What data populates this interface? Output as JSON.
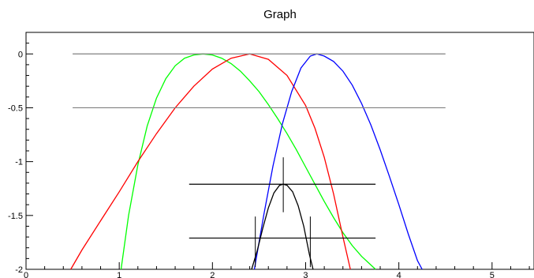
{
  "chart_data": {
    "type": "line",
    "title": "Graph",
    "xlabel": "",
    "ylabel": "",
    "xlim": [
      0,
      5.45
    ],
    "ylim": [
      -2,
      0.2
    ],
    "x_ticks": [
      {
        "value": 0,
        "label": "0"
      },
      {
        "value": 1,
        "label": "1"
      },
      {
        "value": 2,
        "label": "2"
      },
      {
        "value": 3,
        "label": "3"
      },
      {
        "value": 4,
        "label": "4"
      },
      {
        "value": 5,
        "label": "5"
      }
    ],
    "y_ticks": [
      {
        "value": 0,
        "label": "0"
      },
      {
        "value": -0.5,
        "label": "-0.5"
      },
      {
        "value": -1,
        "label": "-1"
      },
      {
        "value": -1.5,
        "label": "-1.5"
      },
      {
        "value": -2,
        "label": "-2"
      }
    ],
    "grid": false,
    "curves": [
      {
        "color": "#00ff00",
        "x": [
          1.02,
          1.1,
          1.2,
          1.3,
          1.4,
          1.5,
          1.6,
          1.7,
          1.8,
          1.9,
          2.0,
          2.1,
          2.2,
          2.3,
          2.4,
          2.5,
          2.6,
          2.7,
          2.8,
          2.9,
          3.0,
          3.1,
          3.2,
          3.3,
          3.4,
          3.5,
          3.6,
          3.7,
          3.75
        ],
        "y": [
          -2.0,
          -1.5,
          -1.03,
          -0.67,
          -0.41,
          -0.23,
          -0.11,
          -0.04,
          -0.01,
          0.0,
          -0.01,
          -0.04,
          -0.09,
          -0.16,
          -0.25,
          -0.35,
          -0.47,
          -0.6,
          -0.74,
          -0.89,
          -1.05,
          -1.21,
          -1.37,
          -1.52,
          -1.66,
          -1.78,
          -1.88,
          -1.96,
          -2.0
        ]
      },
      {
        "color": "#ff0000",
        "x": [
          0.48,
          0.6,
          0.8,
          1.0,
          1.2,
          1.4,
          1.6,
          1.8,
          2.0,
          2.2,
          2.4,
          2.6,
          2.8,
          3.0,
          3.1,
          3.2,
          3.3,
          3.4,
          3.48
        ],
        "y": [
          -2.0,
          -1.82,
          -1.55,
          -1.28,
          -1.0,
          -0.74,
          -0.5,
          -0.3,
          -0.14,
          -0.04,
          0.0,
          -0.05,
          -0.2,
          -0.48,
          -0.69,
          -0.96,
          -1.3,
          -1.7,
          -2.0
        ]
      },
      {
        "color": "#0000ff",
        "x": [
          2.45,
          2.55,
          2.65,
          2.75,
          2.85,
          2.95,
          3.05,
          3.12,
          3.2,
          3.3,
          3.4,
          3.5,
          3.6,
          3.7,
          3.8,
          3.9,
          4.0,
          4.1,
          4.2,
          4.25
        ],
        "y": [
          -2.0,
          -1.5,
          -1.04,
          -0.65,
          -0.35,
          -0.13,
          -0.02,
          0.0,
          -0.02,
          -0.07,
          -0.16,
          -0.29,
          -0.46,
          -0.66,
          -0.89,
          -1.14,
          -1.4,
          -1.67,
          -1.92,
          -2.0
        ]
      },
      {
        "color": "#000000",
        "x": [
          2.42,
          2.48,
          2.54,
          2.6,
          2.66,
          2.72,
          2.76,
          2.8,
          2.86,
          2.92,
          2.98,
          3.04,
          3.08
        ],
        "y": [
          -2.0,
          -1.83,
          -1.62,
          -1.43,
          -1.29,
          -1.22,
          -1.21,
          -1.22,
          -1.28,
          -1.41,
          -1.6,
          -1.86,
          -2.0
        ]
      }
    ],
    "horizontal_lines": [
      {
        "color": "#808080",
        "y": 0,
        "x_start": 0.5,
        "x_end": 4.5
      },
      {
        "color": "#808080",
        "y": -0.5,
        "x_start": 0.5,
        "x_end": 4.5
      },
      {
        "color": "#000000",
        "y": -1.21,
        "x_start": 1.75,
        "x_end": 3.75
      },
      {
        "color": "#000000",
        "y": -1.71,
        "x_start": 1.75,
        "x_end": 3.75
      }
    ],
    "error_bars": [
      {
        "color": "#000000",
        "x": 2.76,
        "y_low": -1.47,
        "y_high": -0.96
      },
      {
        "color": "#000000",
        "x": 2.46,
        "y_low": -1.98,
        "y_high": -1.51
      },
      {
        "color": "#000000",
        "x": 3.05,
        "y_low": -1.98,
        "y_high": -1.51
      }
    ]
  }
}
